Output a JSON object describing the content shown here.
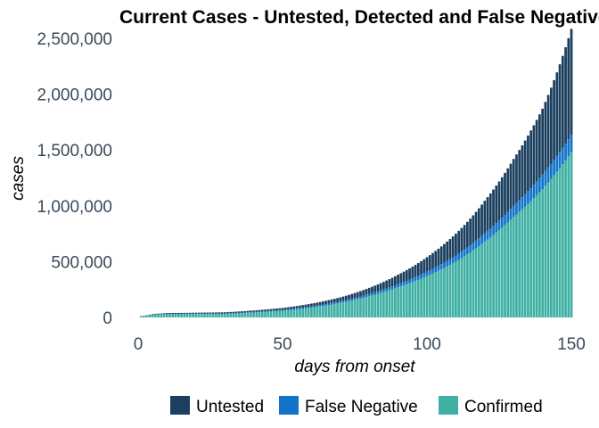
{
  "chart_data": {
    "type": "bar",
    "stacked": true,
    "title": "Current Cases - Untested, Detected and False Negatives",
    "xlabel": "days from onset",
    "ylabel": "cases",
    "xlim": [
      -4,
      154
    ],
    "ylim": [
      0,
      2500000
    ],
    "x_ticks": [
      0,
      50,
      100,
      150
    ],
    "x_tick_labels": [
      "0",
      "50",
      "100",
      "150"
    ],
    "y_ticks": [
      0,
      500000,
      1000000,
      1500000,
      2000000,
      2500000
    ],
    "y_tick_labels": [
      "0",
      "500,000",
      "1,000,000",
      "1,500,000",
      "2,000,000",
      "2,500,000"
    ],
    "grid": false,
    "legend_position": "bottom",
    "x_range": [
      1,
      150
    ],
    "series": [
      {
        "name": "Untested",
        "color": "#1b3f5e",
        "anchor_x": [
          1,
          10,
          30,
          50,
          70,
          80,
          90,
          100,
          110,
          120,
          130,
          140,
          150
        ],
        "anchor_values": [
          3000,
          8000,
          10000,
          17000,
          35000,
          55000,
          85000,
          130000,
          195000,
          290000,
          420000,
          590000,
          950000
        ]
      },
      {
        "name": "False Negative",
        "color": "#1273c8",
        "anchor_x": [
          1,
          10,
          30,
          50,
          70,
          80,
          90,
          100,
          110,
          120,
          130,
          140,
          150
        ],
        "anchor_values": [
          1000,
          3000,
          4000,
          8000,
          15000,
          20000,
          28000,
          40000,
          55000,
          75000,
          100000,
          130000,
          155000
        ]
      },
      {
        "name": "Confirmed",
        "color": "#3fb0a3",
        "anchor_x": [
          1,
          5,
          10,
          30,
          50,
          70,
          80,
          90,
          100,
          110,
          120,
          130,
          140,
          150
        ],
        "anchor_values": [
          8000,
          25000,
          28000,
          32000,
          60000,
          130000,
          190000,
          270000,
          370000,
          500000,
          680000,
          900000,
          1150000,
          1480000
        ]
      }
    ],
    "legend_order": [
      "Untested",
      "False Negative",
      "Confirmed"
    ]
  }
}
